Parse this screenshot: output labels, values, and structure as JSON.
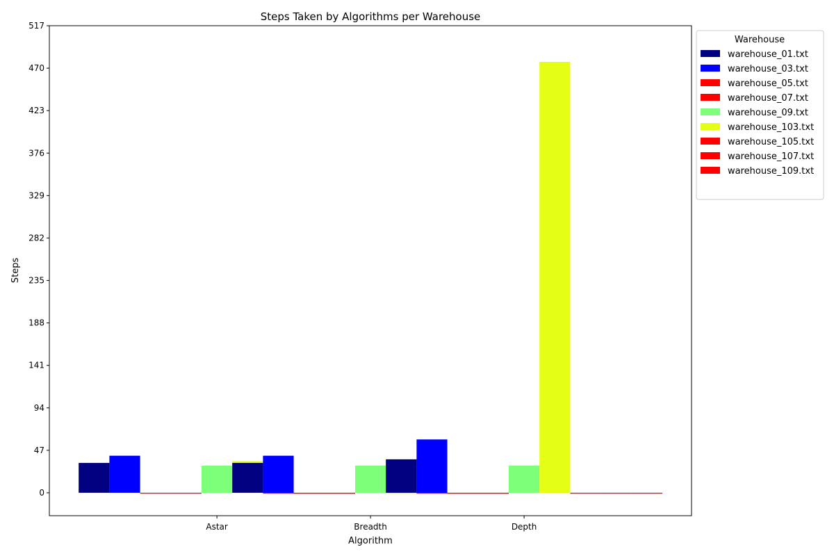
{
  "chart_data": {
    "type": "bar",
    "title": "Steps Taken by Algorithms per Warehouse",
    "xlabel": "Algorithm",
    "ylabel": "Steps",
    "categories": [
      "Astar",
      "Breadth",
      "Depth"
    ],
    "yticks": [
      "0",
      "47",
      "94",
      "141",
      "188",
      "235",
      "282",
      "329",
      "376",
      "423",
      "470",
      "517"
    ],
    "ylim": [
      -25,
      517
    ],
    "grid": false,
    "legend": {
      "title": "Warehouse",
      "placement": "outside-top-right"
    },
    "series": [
      {
        "name": "warehouse_01.txt",
        "color": "#000080",
        "values": [
          33,
          33,
          37
        ]
      },
      {
        "name": "warehouse_03.txt",
        "color": "#0000ff",
        "values": [
          41,
          41,
          59
        ]
      },
      {
        "name": "warehouse_05.txt",
        "color": "#ff0000",
        "values": [
          -1,
          -1,
          -1
        ]
      },
      {
        "name": "warehouse_07.txt",
        "color": "#ff0000",
        "values": [
          -1,
          -1,
          -1
        ]
      },
      {
        "name": "warehouse_09.txt",
        "color": "#7dff7a",
        "values": [
          30,
          30,
          30
        ]
      },
      {
        "name": "warehouse_103.txt",
        "color": "#e4ff13",
        "values": [
          35,
          -1,
          477
        ]
      },
      {
        "name": "warehouse_105.txt",
        "color": "#ff0000",
        "values": [
          -1,
          -1,
          -1
        ]
      },
      {
        "name": "warehouse_107.txt",
        "color": "#ff0000",
        "values": [
          -1,
          -1,
          -1
        ]
      },
      {
        "name": "warehouse_109.txt",
        "color": "#ff0000",
        "values": [
          -1,
          -1,
          -1
        ]
      }
    ]
  }
}
